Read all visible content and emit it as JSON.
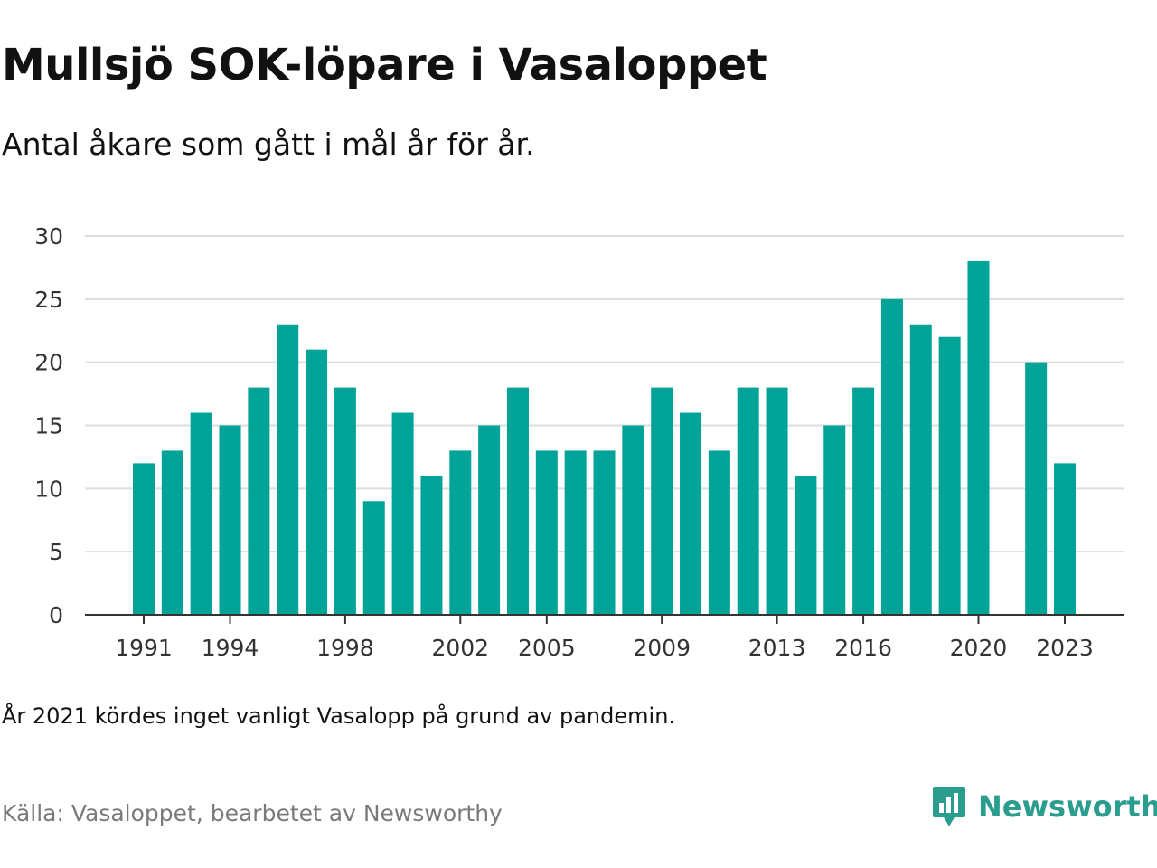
{
  "title": "Mullsjö SOK-löpare i Vasaloppet",
  "subtitle": "Antal åkare som gått i mål år för år.",
  "note": "År 2021 kördes inget vanligt Vasalopp på grund av pandemin.",
  "source": "Källa: Vasaloppet, bearbetet av Newsworthy",
  "brand": {
    "name": "Newsworthy",
    "icon": "newsworthy-logo-icon"
  },
  "colors": {
    "bar": "#00a398",
    "grid": "#dddddd",
    "axis": "#333333",
    "brand": "#2a9d8f"
  },
  "chart_data": {
    "type": "bar",
    "categories": [
      1991,
      1992,
      1993,
      1994,
      1995,
      1996,
      1997,
      1998,
      1999,
      2000,
      2001,
      2002,
      2003,
      2004,
      2005,
      2006,
      2007,
      2008,
      2009,
      2010,
      2011,
      2012,
      2013,
      2014,
      2015,
      2016,
      2017,
      2018,
      2019,
      2020,
      2021,
      2022,
      2023
    ],
    "values": [
      12,
      13,
      16,
      15,
      18,
      23,
      21,
      18,
      9,
      16,
      11,
      13,
      15,
      18,
      13,
      13,
      13,
      15,
      18,
      16,
      13,
      18,
      18,
      11,
      15,
      18,
      25,
      23,
      22,
      28,
      null,
      20,
      12
    ],
    "x_tick_labels": [
      "1991",
      "1994",
      "1998",
      "2002",
      "2005",
      "2009",
      "2013",
      "2016",
      "2020",
      "2023"
    ],
    "y_ticks": [
      0,
      5,
      10,
      15,
      20,
      25,
      30
    ],
    "ylim": [
      0,
      30
    ],
    "grid": true,
    "legend": "none"
  }
}
